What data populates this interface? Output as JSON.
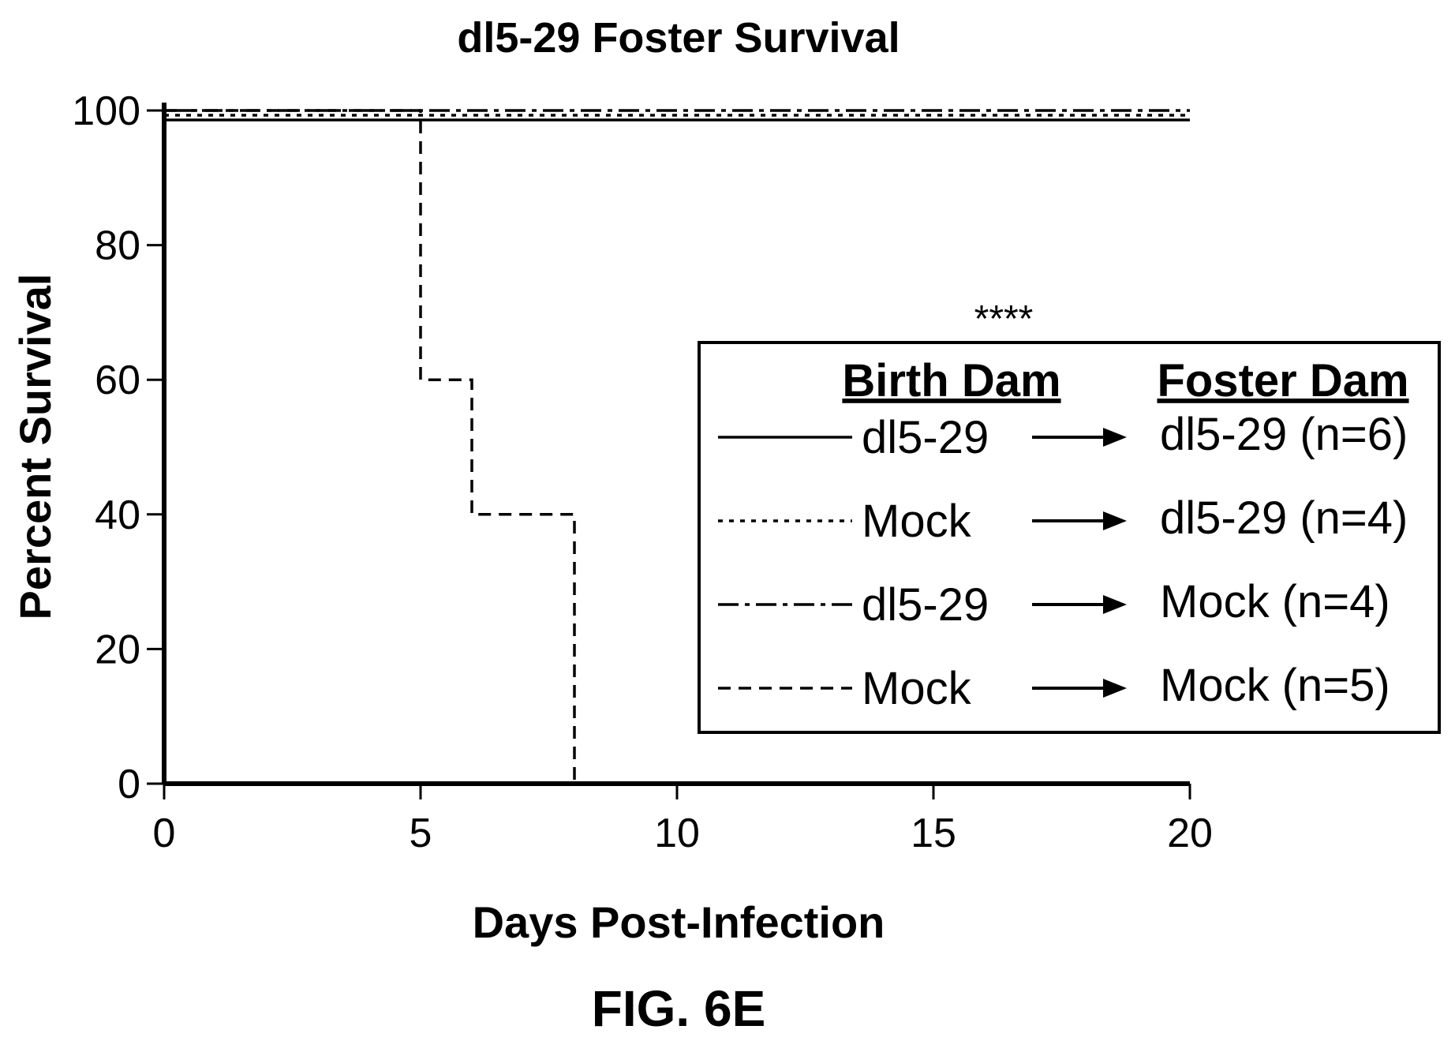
{
  "chart_data": {
    "type": "line",
    "subtype": "kaplan-meier-step",
    "title": "dl5-29 Foster Survival",
    "xlabel": "Days Post-Infection",
    "ylabel": "Percent Survival",
    "xlim": [
      0,
      20
    ],
    "ylim": [
      0,
      100
    ],
    "xticks": [
      0,
      5,
      10,
      15,
      20
    ],
    "yticks": [
      0,
      20,
      40,
      60,
      80,
      100
    ],
    "grid": false,
    "legend_position": "center-right",
    "legend_header": {
      "birth": "Birth Dam",
      "foster": "Foster Dam"
    },
    "annotation": "****",
    "series": [
      {
        "birth": "dl5-29",
        "foster": "dl5-29 (n=6)",
        "line_style": "solid",
        "x": [
          0,
          20
        ],
        "y": [
          100,
          100
        ]
      },
      {
        "birth": "Mock",
        "foster": "dl5-29 (n=4)",
        "line_style": "dotted",
        "x": [
          0,
          20
        ],
        "y": [
          100,
          100
        ]
      },
      {
        "birth": "dl5-29",
        "foster": "Mock (n=4)",
        "line_style": "dashdot",
        "x": [
          0,
          20
        ],
        "y": [
          100,
          100
        ]
      },
      {
        "birth": "Mock",
        "foster": "Mock (n=5)",
        "line_style": "dashed",
        "x": [
          0,
          5,
          5,
          6,
          6,
          8,
          8
        ],
        "y": [
          100,
          100,
          60,
          60,
          40,
          40,
          0
        ]
      }
    ]
  },
  "figure_label": "FIG. 6E"
}
